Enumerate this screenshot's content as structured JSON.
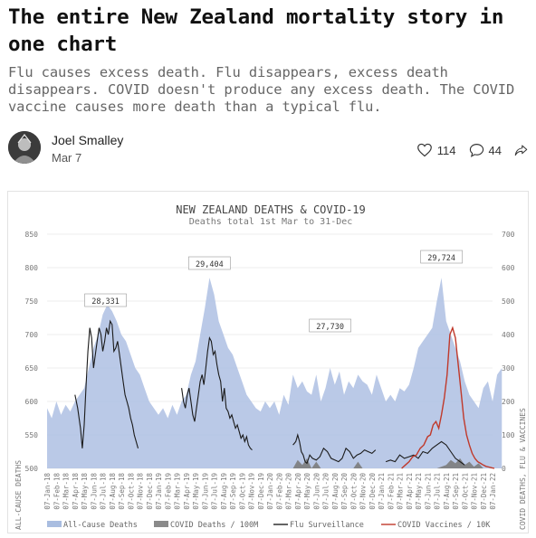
{
  "post": {
    "title": "The entire New Zealand mortality story in one chart",
    "subtitle": "Flu causes excess death. Flu disappears, excess death disappears. COVID doesn't produce any excess death. The COVID vaccine causes more death than a typical flu.",
    "author": "Joel Smalley",
    "date": "Mar 7",
    "like_count": "114",
    "comment_count": "44",
    "icons": {
      "like": "heart-icon",
      "comment": "comment-icon",
      "share": "share-icon",
      "avatar": "avatar-image"
    }
  },
  "chart_data": {
    "type": "area",
    "title": "NEW ZEALAND DEATHS & COVID-19",
    "subtitle": "Deaths total 1st Mar to 31-Dec",
    "ylabel": "ALL-CAUSE DEATHS",
    "y2label": "COVID DEATHS, FLU & VACCINES",
    "ylim": [
      500,
      850
    ],
    "y2lim": [
      0,
      700
    ],
    "yticks": [
      "500",
      "550",
      "600",
      "650",
      "700",
      "750",
      "800",
      "850"
    ],
    "y2ticks": [
      "0",
      "100",
      "200",
      "300",
      "400",
      "500",
      "600",
      "700"
    ],
    "x_ticks": [
      "07-Jan-18",
      "07-Feb-18",
      "07-Mar-18",
      "07-Apr-18",
      "07-May-18",
      "07-Jun-18",
      "07-Jul-18",
      "07-Aug-18",
      "07-Sep-18",
      "07-Oct-18",
      "07-Nov-18",
      "07-Dec-18",
      "07-Jan-19",
      "07-Feb-19",
      "07-Mar-19",
      "07-Apr-19",
      "07-May-19",
      "07-Jun-19",
      "07-Jul-19",
      "07-Aug-19",
      "07-Sep-19",
      "07-Oct-19",
      "07-Nov-19",
      "07-Dec-19",
      "07-Jan-20",
      "07-Feb-20",
      "07-Mar-20",
      "07-Apr-20",
      "07-May-20",
      "07-Jun-20",
      "07-Jul-20",
      "07-Aug-20",
      "07-Sep-20",
      "07-Oct-20",
      "07-Nov-20",
      "07-Dec-20",
      "07-Jan-21",
      "07-Feb-21",
      "07-Mar-21",
      "07-Apr-21",
      "07-May-21",
      "07-Jun-21",
      "07-Jul-21",
      "07-Aug-21",
      "07-Sep-21",
      "07-Oct-21",
      "07-Nov-21",
      "07-Dec-21",
      "07-Jan-22"
    ],
    "annotations": [
      {
        "label": "28,331",
        "x": 6.3
      },
      {
        "label": "29,404",
        "x": 17.5
      },
      {
        "label": "27,730",
        "x": 30.5
      },
      {
        "label": "29,724",
        "x": 42.5
      }
    ],
    "legend": [
      "All-Cause Deaths",
      "COVID Deaths / 100M",
      "Flu Surveillance",
      "COVID Vaccines / 10K"
    ],
    "legend_colors": [
      "#a9bde0",
      "#8a8a8a",
      "#222222",
      "#c0392b"
    ],
    "legend_position": "bottom",
    "series": [
      {
        "name": "All-Cause Deaths",
        "axis": "left",
        "x": [
          0,
          0.5,
          1,
          1.5,
          2,
          2.5,
          3,
          3.5,
          4,
          4.5,
          5,
          5.5,
          6,
          6.5,
          7,
          7.5,
          8,
          8.5,
          9,
          9.5,
          10,
          10.5,
          11,
          11.5,
          12,
          12.5,
          13,
          13.5,
          14,
          14.5,
          15,
          15.5,
          16,
          16.5,
          17,
          17.5,
          18,
          18.5,
          19,
          19.5,
          20,
          20.5,
          21,
          21.5,
          22,
          22.5,
          23,
          23.5,
          24,
          24.5,
          25,
          25.5,
          26,
          26.5,
          27,
          27.5,
          28,
          28.5,
          29,
          29.5,
          30,
          30.5,
          31,
          31.5,
          32,
          32.5,
          33,
          33.5,
          34,
          34.5,
          35,
          35.5,
          36,
          36.5,
          37,
          37.5,
          38,
          38.5,
          39,
          39.5,
          40,
          40.5,
          41,
          41.5,
          42,
          42.5,
          43,
          43.5,
          44,
          44.5,
          45,
          45.5,
          46,
          46.5,
          47,
          47.5,
          48,
          48.5,
          49
        ],
        "values": [
          590,
          575,
          600,
          580,
          595,
          585,
          600,
          610,
          620,
          650,
          680,
          700,
          730,
          745,
          735,
          720,
          700,
          690,
          670,
          650,
          640,
          620,
          600,
          590,
          580,
          590,
          575,
          595,
          580,
          600,
          610,
          640,
          660,
          700,
          740,
          785,
          760,
          720,
          700,
          680,
          670,
          650,
          630,
          610,
          600,
          590,
          585,
          600,
          590,
          600,
          580,
          610,
          595,
          640,
          620,
          630,
          615,
          610,
          640,
          600,
          620,
          650,
          625,
          645,
          610,
          630,
          620,
          640,
          630,
          625,
          610,
          640,
          620,
          600,
          610,
          600,
          620,
          615,
          625,
          650,
          680,
          690,
          700,
          710,
          750,
          785,
          720,
          700,
          680,
          660,
          630,
          610,
          600,
          590,
          620,
          630,
          600,
          640,
          650
        ]
      },
      {
        "name": "COVID Deaths / 100M",
        "axis": "right",
        "x": [
          26.5,
          27,
          27.5,
          28,
          28.5,
          29,
          29.5,
          30,
          30.5,
          31,
          31.5,
          32,
          32.5,
          33,
          33.5,
          34,
          34.5,
          35,
          35.5,
          36,
          36.5,
          37,
          37.5,
          38,
          38.5,
          39,
          39.5,
          40,
          40.5,
          41,
          41.5,
          42,
          42.5,
          43,
          43.5,
          44,
          44.5,
          45,
          45.5,
          46,
          46.5,
          47
        ],
        "values": [
          0,
          25,
          10,
          30,
          0,
          20,
          0,
          0,
          0,
          0,
          0,
          0,
          0,
          0,
          20,
          0,
          0,
          0,
          0,
          0,
          0,
          0,
          0,
          0,
          0,
          0,
          0,
          0,
          0,
          0,
          0,
          0,
          5,
          10,
          25,
          15,
          30,
          10,
          20,
          5,
          15,
          0
        ]
      },
      {
        "name": "Flu Surveillance",
        "axis": "right",
        "segments": [
          {
            "x": [
              3,
              3.3,
              3.6,
              3.8,
              4,
              4.2,
              4.4,
              4.6,
              4.8,
              5,
              5.2,
              5.4,
              5.6,
              5.8,
              6,
              6.2,
              6.4,
              6.6,
              6.8,
              7,
              7.2,
              7.4,
              7.6,
              7.8,
              8,
              8.2,
              8.4,
              8.6,
              8.8,
              9,
              9.2,
              9.4,
              9.6,
              9.8
            ],
            "values": [
              220,
              180,
              120,
              60,
              130,
              250,
              350,
              420,
              390,
              300,
              340,
              380,
              420,
              400,
              350,
              380,
              420,
              400,
              440,
              430,
              350,
              360,
              380,
              340,
              300,
              260,
              220,
              200,
              180,
              150,
              130,
              100,
              80,
              60
            ]
          },
          {
            "x": [
              14.5,
              14.7,
              14.9,
              15.1,
              15.3,
              15.5,
              15.7,
              15.9,
              16.1,
              16.3,
              16.5,
              16.7,
              16.9,
              17.1,
              17.3,
              17.5,
              17.7,
              17.9,
              18.1,
              18.3,
              18.5,
              18.7,
              18.9,
              19.1,
              19.3,
              19.5,
              19.7,
              19.9,
              20.1,
              20.3,
              20.5,
              20.7,
              20.9,
              21.1,
              21.3,
              21.5,
              21.7,
              21.9,
              22.1
            ],
            "values": [
              240,
              200,
              180,
              220,
              240,
              200,
              160,
              140,
              180,
              220,
              260,
              280,
              250,
              300,
              350,
              390,
              380,
              340,
              350,
              310,
              280,
              260,
              200,
              240,
              180,
              170,
              150,
              160,
              140,
              120,
              130,
              110,
              90,
              100,
              80,
              95,
              70,
              60,
              55
            ]
          },
          {
            "x": [
              26.5,
              26.8,
              27,
              27.2,
              27.4,
              27.6,
              27.8,
              28,
              28.3,
              28.6,
              29,
              29.4,
              29.8,
              30.2,
              30.6,
              31,
              31.4,
              31.8,
              32.2,
              32.6,
              33,
              33.4,
              33.8,
              34.2,
              34.6,
              35,
              35.4
            ],
            "values": [
              70,
              80,
              100,
              80,
              50,
              40,
              20,
              15,
              40,
              30,
              25,
              35,
              60,
              50,
              30,
              25,
              20,
              30,
              60,
              50,
              30,
              40,
              45,
              55,
              50,
              45,
              55
            ]
          },
          {
            "x": [
              36.5,
              37,
              37.5,
              38,
              38.5,
              39,
              39.5,
              40,
              40.5,
              41,
              41.5,
              42,
              42.5,
              43,
              43.5,
              44,
              44.5,
              45
            ],
            "values": [
              20,
              25,
              20,
              40,
              30,
              35,
              40,
              30,
              50,
              45,
              60,
              70,
              80,
              70,
              50,
              30,
              20,
              10
            ]
          }
        ]
      },
      {
        "name": "COVID Vaccines / 10K",
        "axis": "right",
        "x": [
          38.2,
          38.6,
          39,
          39.4,
          39.8,
          40.2,
          40.6,
          41,
          41.3,
          41.6,
          41.9,
          42.2,
          42.5,
          42.8,
          43.1,
          43.4,
          43.7,
          44,
          44.3,
          44.6,
          44.9,
          45.2,
          45.5,
          45.8,
          46.1,
          46.4,
          46.7,
          47,
          47.3,
          47.6,
          47.9,
          48.2
        ],
        "values": [
          0,
          10,
          20,
          35,
          40,
          60,
          70,
          95,
          100,
          130,
          140,
          120,
          160,
          210,
          280,
          400,
          420,
          390,
          310,
          230,
          150,
          100,
          70,
          45,
          30,
          20,
          15,
          10,
          6,
          4,
          2,
          0
        ]
      }
    ]
  }
}
